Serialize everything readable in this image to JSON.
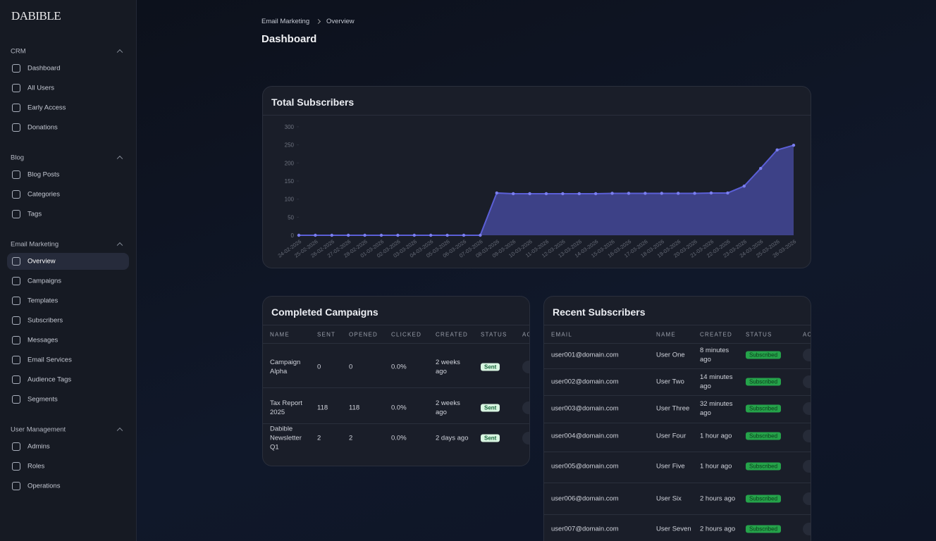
{
  "brand": "DABIBLE",
  "sidebar": {
    "active": "Overview",
    "sections": [
      {
        "title": "CRM",
        "items": [
          "Dashboard",
          "All Users",
          "Early Access",
          "Donations"
        ]
      },
      {
        "title": "Blog",
        "items": [
          "Blog Posts",
          "Categories",
          "Tags"
        ]
      },
      {
        "title": "Email Marketing",
        "items": [
          "Overview",
          "Campaigns",
          "Templates",
          "Subscribers",
          "Messages",
          "Email Services",
          "Audience Tags",
          "Segments"
        ]
      },
      {
        "title": "User Management",
        "items": [
          "Admins",
          "Roles",
          "Operations"
        ]
      }
    ]
  },
  "breadcrumb": [
    "Email Marketing",
    "Overview"
  ],
  "page_title": "Dashboard",
  "subscribers_chart": {
    "type": "area",
    "title": "Total Subscribers",
    "color": "#5b5fd6",
    "categories": [
      "24-02-2026",
      "25-02-2026",
      "26-02-2026",
      "27-02-2026",
      "28-02-2026",
      "01-03-2026",
      "02-03-2026",
      "03-03-2026",
      "04-03-2026",
      "05-03-2026",
      "06-03-2026",
      "07-03-2026",
      "08-03-2026",
      "09-03-2026",
      "10-03-2026",
      "11-03-2026",
      "12-03-2026",
      "13-03-2026",
      "14-03-2026",
      "15-03-2026",
      "16-03-2026",
      "17-03-2026",
      "18-03-2026",
      "19-03-2026",
      "20-03-2026",
      "21-03-2026",
      "22-03-2026",
      "23-03-2026",
      "24-03-2026",
      "25-03-2026",
      "26-03-2026"
    ],
    "values": [
      0,
      0,
      0,
      0,
      0,
      0,
      0,
      0,
      0,
      0,
      0,
      0,
      117,
      115,
      115,
      115,
      115,
      115,
      115,
      116,
      116,
      116,
      116,
      116,
      116,
      117,
      117,
      136,
      185,
      236,
      249
    ],
    "ylim": [
      0,
      300
    ],
    "yticks": [
      0,
      50,
      100,
      150,
      200,
      250,
      300
    ]
  },
  "campaigns": {
    "title": "Completed Campaigns",
    "columns": [
      "NAME",
      "SENT",
      "OPENED",
      "CLICKED",
      "CREATED",
      "STATUS",
      "ACTIONS"
    ],
    "rows": [
      [
        "Campaign Alpha",
        0,
        0,
        "0.0%",
        "2 weeks ago",
        "Sent"
      ],
      [
        "Tax Report 2025",
        118,
        118,
        "0.0%",
        "2 weeks ago",
        "Sent"
      ],
      [
        "Dabible Newsletter Q1",
        2,
        2,
        "0.0%",
        "2 days ago",
        "Sent"
      ]
    ]
  },
  "subscribers": {
    "title": "Recent Subscribers",
    "columns": [
      "EMAIL",
      "NAME",
      "CREATED",
      "STATUS",
      "ACTIONS"
    ],
    "rows": [
      [
        "user001@domain.com",
        "User One",
        "8 minutes ago",
        "Subscribed"
      ],
      [
        "user002@domain.com",
        "User Two",
        "14 minutes ago",
        "Subscribed"
      ],
      [
        "user003@domain.com",
        "User Three",
        "32 minutes ago",
        "Subscribed"
      ],
      [
        "user004@domain.com",
        "User Four",
        "1 hour ago",
        "Subscribed"
      ],
      [
        "user005@domain.com",
        "User Five",
        "1 hour ago",
        "Subscribed"
      ],
      [
        "user006@domain.com",
        "User Six",
        "2 hours ago",
        "Subscribed"
      ],
      [
        "user007@domain.com",
        "User Seven",
        "2 hours ago",
        "Subscribed"
      ]
    ]
  }
}
